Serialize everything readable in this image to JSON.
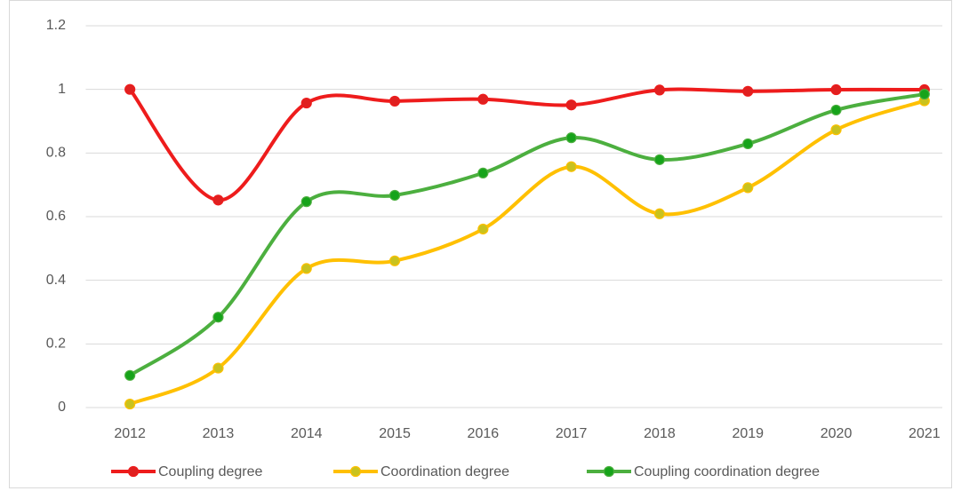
{
  "chart_data": {
    "type": "line",
    "categories": [
      "2012",
      "2013",
      "2014",
      "2015",
      "2016",
      "2017",
      "2018",
      "2019",
      "2020",
      "2021"
    ],
    "series": [
      {
        "name": "Coupling degree",
        "color": "#ee1c1c",
        "marker_color": "#e02020",
        "values": [
          1.0,
          0.652,
          0.957,
          0.963,
          0.969,
          0.951,
          0.998,
          0.994,
          0.999,
          0.999
        ]
      },
      {
        "name": "Coordination degree",
        "color": "#ffc000",
        "marker_color": "#c9c21e",
        "values": [
          0.011,
          0.124,
          0.437,
          0.461,
          0.561,
          0.757,
          0.609,
          0.691,
          0.873,
          0.964
        ]
      },
      {
        "name": "Coupling coordination degree",
        "color": "#4caf3f",
        "marker_color": "#16a31a",
        "values": [
          0.101,
          0.284,
          0.647,
          0.667,
          0.737,
          0.848,
          0.779,
          0.829,
          0.935,
          0.985
        ]
      }
    ],
    "ylim": [
      0,
      1.2
    ],
    "yticks": [
      0,
      0.2,
      0.4,
      0.6,
      0.8,
      1,
      1.2
    ],
    "grid": true,
    "smooth": true,
    "legend": "bottom"
  }
}
